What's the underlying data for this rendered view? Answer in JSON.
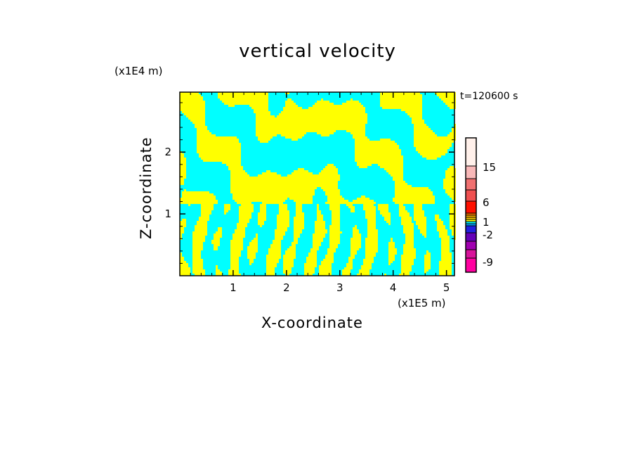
{
  "chart_data": {
    "type": "heatmap",
    "title": "vertical velocity",
    "xlabel": "X-coordinate",
    "ylabel": "Z-coordinate",
    "x_unit_label": "(x1E5 m)",
    "y_unit_label": "(x1E4 m)",
    "time_label": "t=120600 s",
    "xlim": [
      0,
      5.15
    ],
    "ylim": [
      0,
      2.97
    ],
    "x_ticks": [
      {
        "value": 1,
        "label": "1"
      },
      {
        "value": 2,
        "label": "2"
      },
      {
        "value": 3,
        "label": "3"
      },
      {
        "value": 4,
        "label": "4"
      },
      {
        "value": 5,
        "label": "5"
      }
    ],
    "y_ticks": [
      {
        "value": 1,
        "label": "1"
      },
      {
        "value": 2,
        "label": "2"
      }
    ],
    "colorbar": {
      "levels": [
        {
          "range": "<-12",
          "color": "#ff00a0"
        },
        {
          "range": "-12 to -9",
          "color": "#d8129a"
        },
        {
          "range": "-9 to -6",
          "color": "#a000b0"
        },
        {
          "range": "-6 to -3",
          "color": "#6400b8"
        },
        {
          "range": "-3 to -2",
          "color": "#2020e0"
        },
        {
          "range": "-2 to -1",
          "color": "#00a0ff"
        },
        {
          "range": "-1 to 0",
          "color": "#00ffff"
        },
        {
          "range": "0 to 1",
          "color": "#ffff00"
        },
        {
          "range": "1 to 2",
          "color": "#ffd000"
        },
        {
          "range": "2 to 3",
          "color": "#ffb000"
        },
        {
          "range": "3 to 6",
          "color": "#f07000"
        },
        {
          "range": "6 to 9",
          "color": "#ff1000"
        },
        {
          "range": "9 to 12",
          "color": "#f05050"
        },
        {
          "range": "12 to 15",
          "color": "#f07070"
        },
        {
          "range": "15 to 18",
          "color": "#f8b8b8"
        },
        {
          "range": ">18",
          "color": "#fff0ea"
        }
      ],
      "tick_labels": [
        "15",
        "6",
        "1",
        "-2",
        "-9"
      ]
    },
    "dominant_values": {
      "updraft_color": "#ffff00",
      "downdraft_color": "#00ffff",
      "description_ranges": [
        "0 to 1",
        "-1 to 0"
      ]
    }
  }
}
